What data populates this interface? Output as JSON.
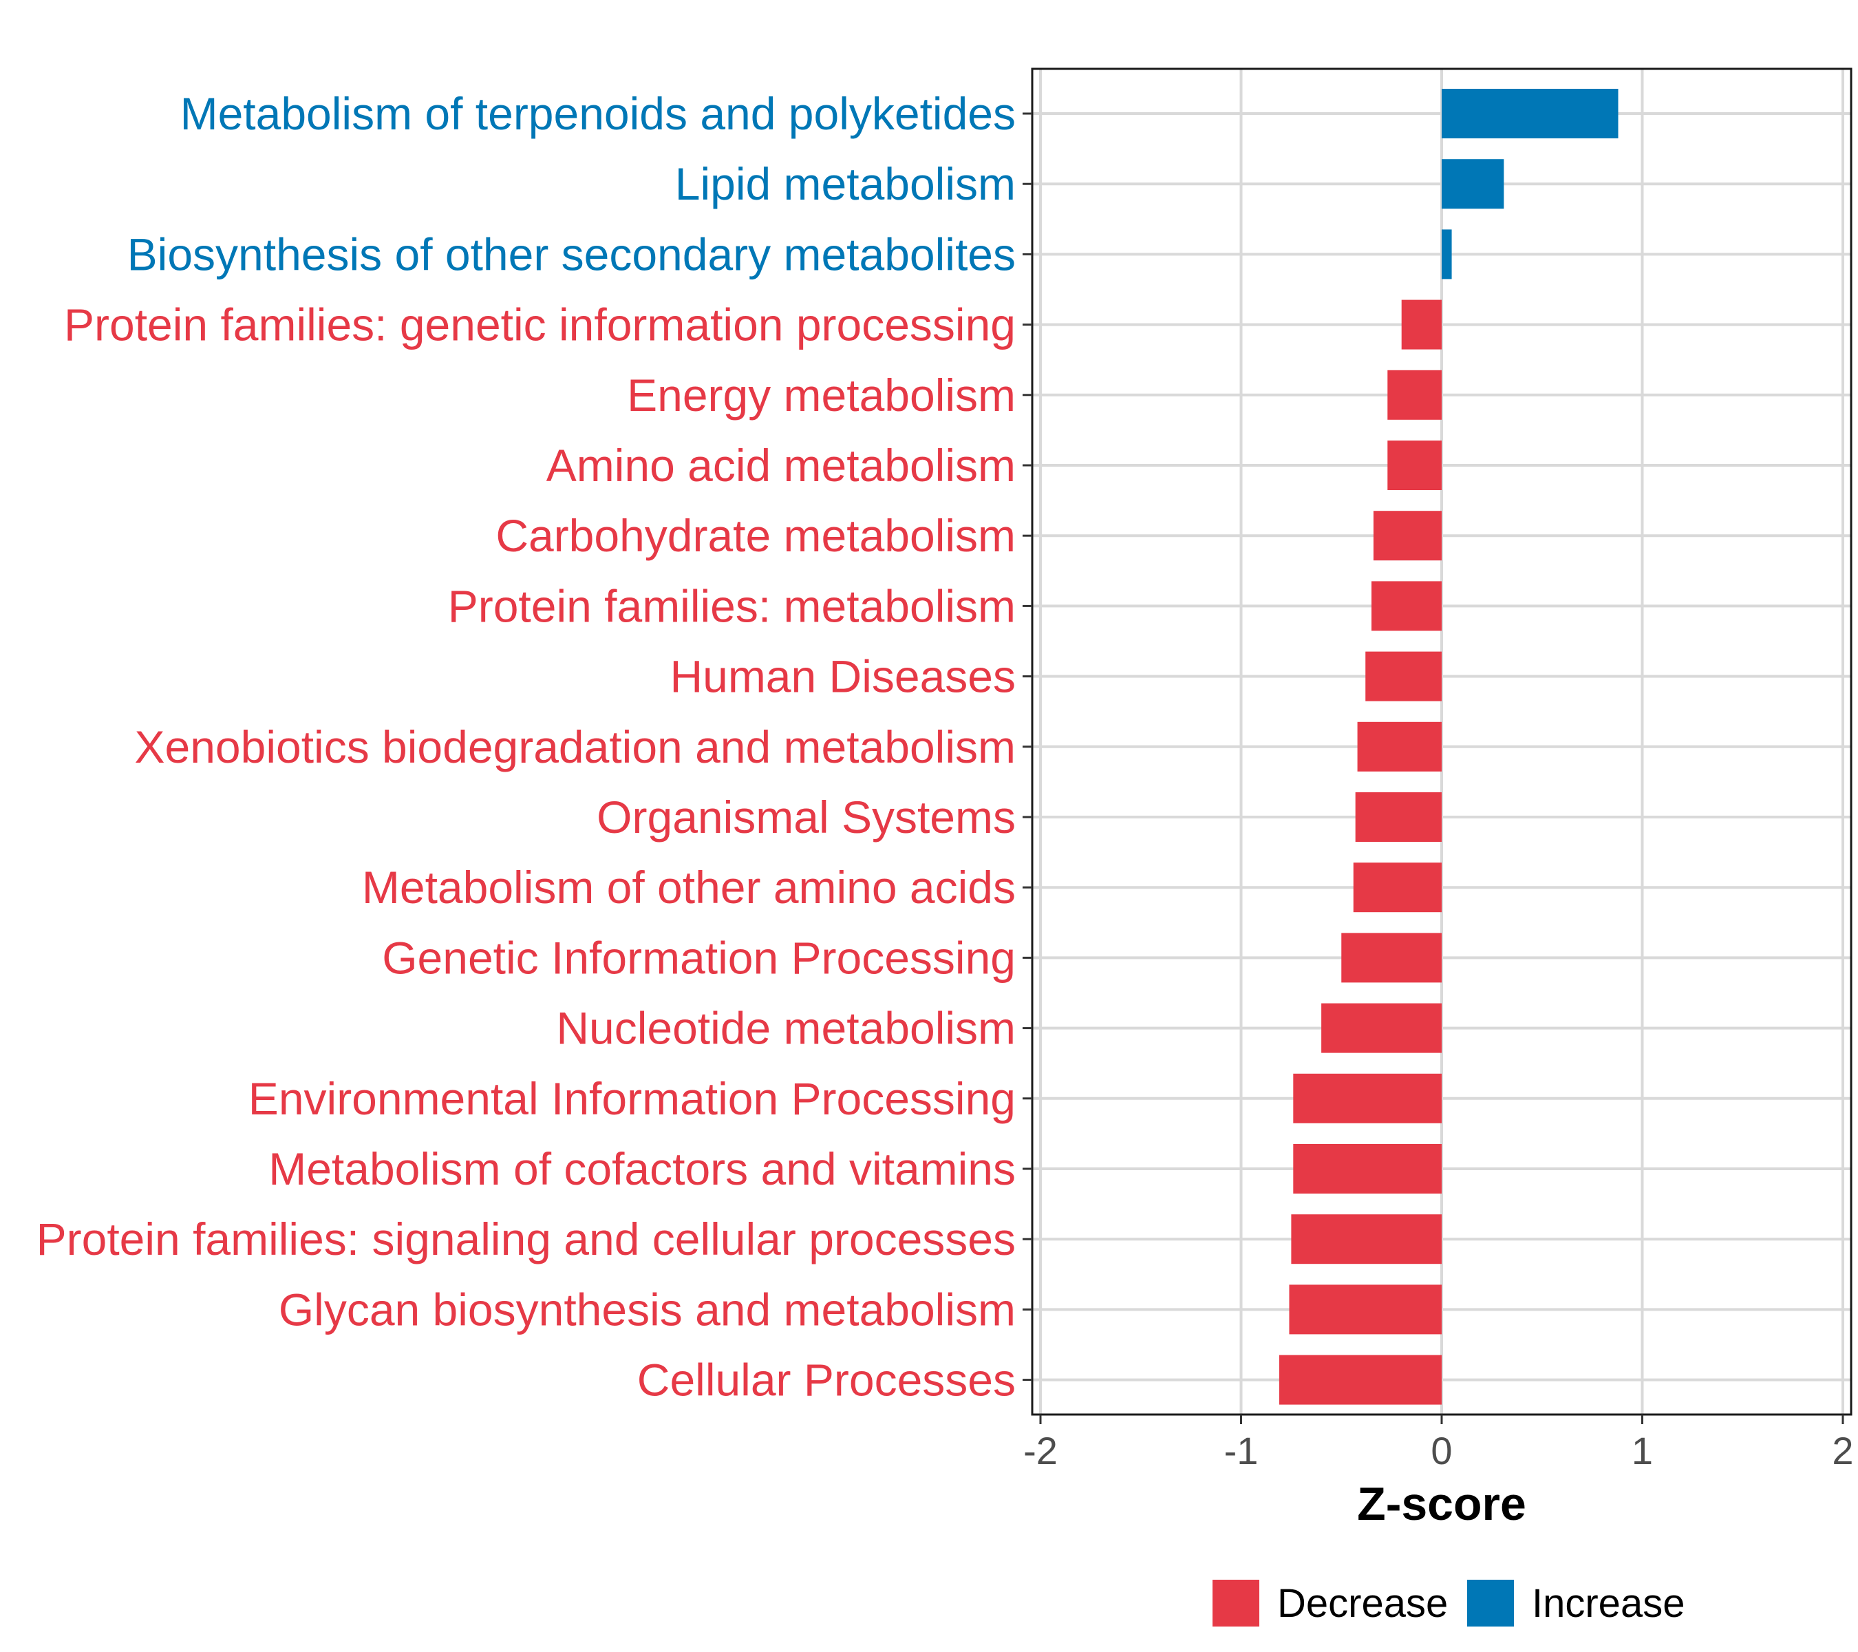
{
  "chart_data": {
    "type": "bar",
    "orientation": "horizontal",
    "xlabel": "Z-score",
    "xlim": [
      -2,
      2
    ],
    "xticks": [
      -2,
      -1,
      0,
      1,
      2
    ],
    "grid": true,
    "legend_position": "bottom",
    "colors": {
      "Decrease": "#e63946",
      "Increase": "#0077b6"
    },
    "legend": [
      {
        "label": "Decrease",
        "color": "#e63946"
      },
      {
        "label": "Increase",
        "color": "#0077b6"
      }
    ],
    "categories": [
      "Metabolism of terpenoids and polyketides",
      "Lipid metabolism",
      "Biosynthesis of other secondary metabolites",
      "Protein families: genetic information processing",
      "Energy metabolism",
      "Amino acid metabolism",
      "Carbohydrate metabolism",
      "Protein families: metabolism",
      "Human Diseases",
      "Xenobiotics biodegradation and metabolism",
      "Organismal Systems",
      "Metabolism of other amino acids",
      "Genetic Information Processing",
      "Nucleotide metabolism",
      "Environmental Information Processing",
      "Metabolism of cofactors and vitamins",
      "Protein families: signaling and cellular processes",
      "Glycan biosynthesis and metabolism",
      "Cellular Processes"
    ],
    "values": [
      0.88,
      0.31,
      0.05,
      -0.2,
      -0.27,
      -0.27,
      -0.34,
      -0.35,
      -0.38,
      -0.42,
      -0.43,
      -0.44,
      -0.5,
      -0.6,
      -0.74,
      -0.74,
      -0.75,
      -0.76,
      -0.81
    ],
    "groups": [
      "Increase",
      "Increase",
      "Increase",
      "Decrease",
      "Decrease",
      "Decrease",
      "Decrease",
      "Decrease",
      "Decrease",
      "Decrease",
      "Decrease",
      "Decrease",
      "Decrease",
      "Decrease",
      "Decrease",
      "Decrease",
      "Decrease",
      "Decrease",
      "Decrease"
    ]
  }
}
